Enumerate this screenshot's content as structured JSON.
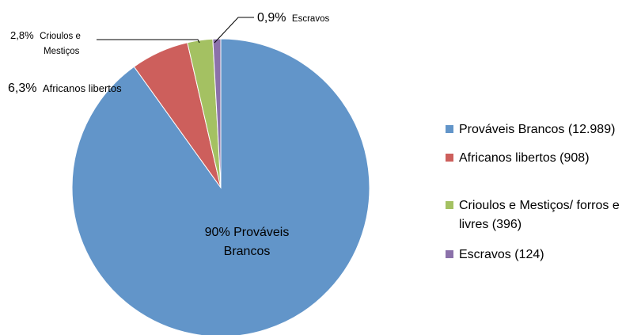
{
  "chart_data": {
    "type": "pie",
    "title": "",
    "slices": [
      {
        "name": "Prováveis Brancos (12.989)",
        "value": 12989,
        "percent_label": "90%",
        "inner_label_1": "90% Prováveis",
        "inner_label_2": "Brancos",
        "color": "#6295C9"
      },
      {
        "name": "Africanos libertos (908)",
        "value": 908,
        "percent_label": "6,3%",
        "callout_1": "6,3%",
        "callout_2": "Africanos libertos",
        "color": "#CD5F5C"
      },
      {
        "name_1": "Crioulos e Mestiços/ forros e",
        "name_2": "livres (396)",
        "name": "Crioulos e Mestiços/ forros e livres (396)",
        "value": 396,
        "percent_label": "2,8%",
        "callout_1": "2,8%",
        "callout_2": "Crioulos e",
        "callout_3": "Mestiços",
        "color": "#A4C162"
      },
      {
        "name": "Escravos (124)",
        "value": 124,
        "percent_label": "0,9%",
        "callout_1": "0,9%",
        "callout_2": "Escravos",
        "color": "#8B71AA"
      }
    ],
    "legend_position": "right"
  }
}
